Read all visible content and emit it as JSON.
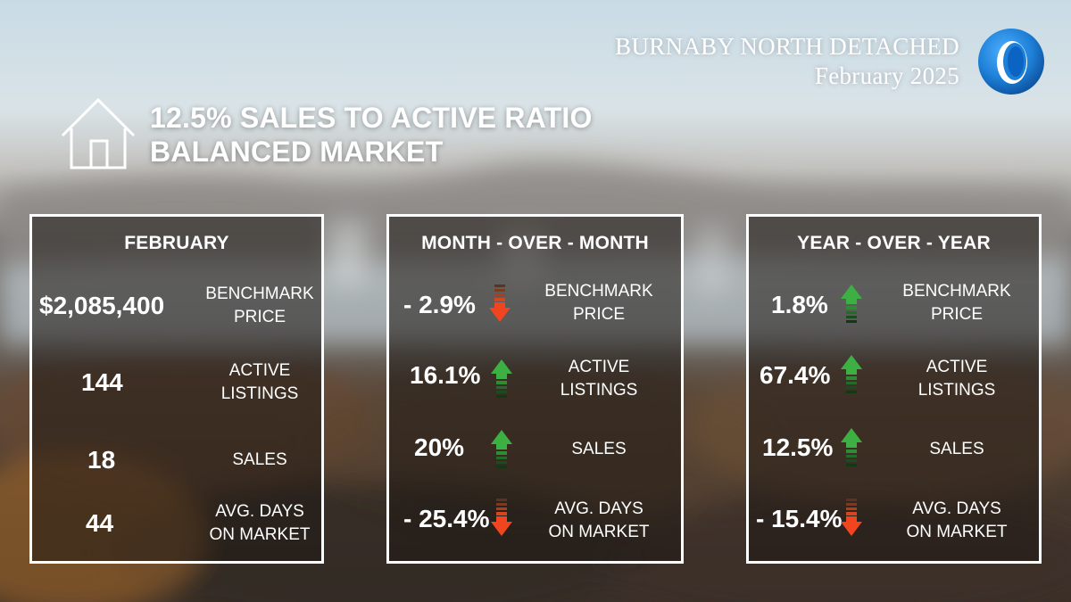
{
  "header": {
    "title": "BURNABY NORTH DETACHED",
    "date": "February 2025"
  },
  "market": {
    "ratio": "12.5% SALES TO ACTIVE RATIO",
    "status": "BALANCED MARKET"
  },
  "labels": {
    "benchmark_1": "BENCHMARK",
    "benchmark_2": "PRICE",
    "active_1": "ACTIVE",
    "active_2": "LISTINGS",
    "sales": "SALES",
    "days_1": "AVG. DAYS",
    "days_2": "ON MARKET"
  },
  "panels": [
    {
      "heading": "FEBRUARY",
      "stats": [
        "$2,085,400",
        "144",
        "18",
        "44"
      ]
    },
    {
      "heading": "MONTH - OVER - MONTH",
      "stats": [
        "- 2.9%",
        "16.1%",
        "20%",
        "- 25.4%"
      ],
      "directions": [
        "down",
        "up",
        "up",
        "down"
      ]
    },
    {
      "heading": "YEAR - OVER - YEAR",
      "stats": [
        "1.8%",
        "67.4%",
        "12.5%",
        "- 15.4%"
      ],
      "directions": [
        "up",
        "up",
        "up",
        "down"
      ]
    }
  ],
  "icons": {
    "house": "house-icon",
    "logo": "ring-logo-icon",
    "up": "arrow-up-icon",
    "down": "arrow-down-icon"
  },
  "colors": {
    "up_arrow": "#3cb043",
    "down_arrow": "#f0451e",
    "panel_border": "#ffffff",
    "logo_blue": "#1d7fd6"
  }
}
